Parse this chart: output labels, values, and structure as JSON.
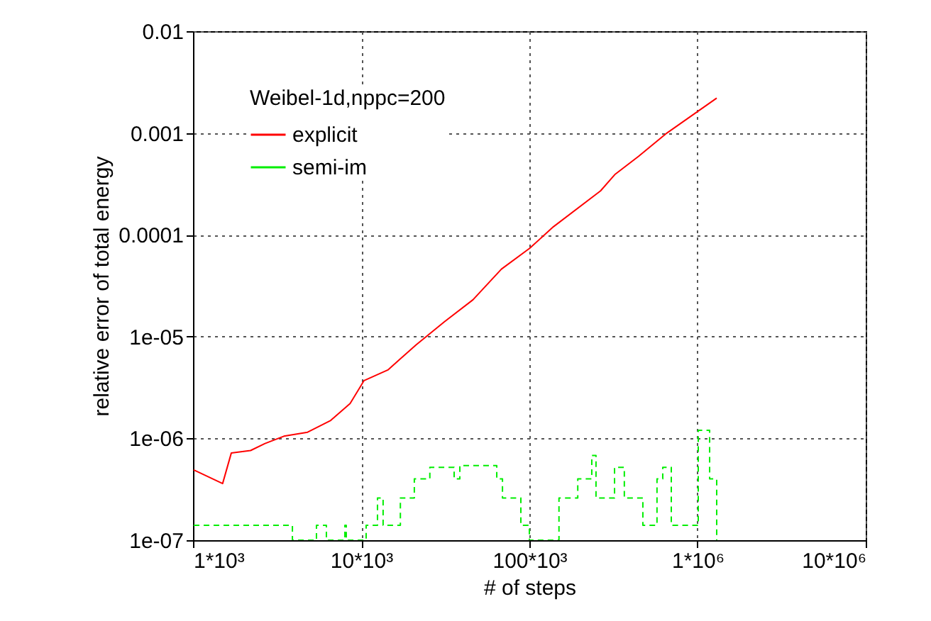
{
  "chart_data": {
    "type": "line",
    "xlabel": "# of steps",
    "ylabel": "relative error of total energy",
    "legend_title": "Weibel-1d,nppc=200",
    "log": "xy",
    "grid": true,
    "legend": "top left",
    "xlim": [
      1000,
      10000000
    ],
    "xticks": [
      {
        "value": 1000,
        "label": "1*10³"
      },
      {
        "value": 10000,
        "label": "10*10³"
      },
      {
        "value": 100000,
        "label": "100*10³"
      },
      {
        "value": 1000000,
        "label": "1*10⁶"
      },
      {
        "value": 10000000,
        "label": "10*10⁶"
      }
    ],
    "ylim": [
      1e-07,
      0.01
    ],
    "yticks": [
      {
        "value": 1e-07,
        "label": "1e-07"
      },
      {
        "value": 1e-06,
        "label": "1e-06"
      },
      {
        "value": 1e-05,
        "label": "1e-05"
      },
      0.0001,
      0.001,
      0.01
    ],
    "series": [
      {
        "name": "explicit",
        "line_style": "solid",
        "color": "#ff0000",
        "x": [
          1010,
          1500,
          1690,
          2200,
          2680,
          3470,
          4800,
          6590,
          8590,
          10400,
          14400,
          21200,
          31300,
          46200,
          68200,
          100700,
          139000,
          265000,
          322000,
          446000,
          658000,
          1300000
        ],
        "values": [
          4.9e-07,
          3.6e-07,
          7.2e-07,
          7.6e-07,
          8.9e-07,
          1.05e-06,
          1.15e-06,
          1.5e-06,
          2.2e-06,
          3.7e-06,
          4.7e-06,
          8.3e-06,
          1.4e-05,
          2.3e-05,
          4.6e-05,
          7.4e-05,
          0.00012,
          0.00027,
          0.00039,
          0.00059,
          0.001,
          0.0022
        ]
      },
      {
        "name": "semi-im",
        "type": "step",
        "line_style": "dashed",
        "color": "#00ee00",
        "x": [
          1010,
          3820,
          3900,
          5420,
          6210,
          8000,
          8150,
          10700,
          12500,
          13500,
          17100,
          20700,
          25600,
          35700,
          38600,
          52700,
          64000,
          69200,
          89000,
          100000,
          150000,
          194000,
          235000,
          249000,
          321000,
          367000,
          473000,
          574000,
          621000,
          698000,
          916000,
          1010000,
          1180000,
          1300000
        ],
        "values": [
          1.4e-07,
          1.4e-07,
          1e-07,
          1.4e-07,
          1e-07,
          1.4e-07,
          1e-07,
          1.4e-07,
          2.6e-07,
          1.4e-07,
          2.6e-07,
          4e-07,
          5.2e-07,
          4e-07,
          5.4e-07,
          5.4e-07,
          4e-07,
          2.6e-07,
          1.4e-07,
          1e-07,
          2.6e-07,
          4e-07,
          6.8e-07,
          2.6e-07,
          5.2e-07,
          2.6e-07,
          1.4e-07,
          4e-07,
          5.2e-07,
          1.4e-07,
          1.4e-07,
          1.2e-06,
          4e-07,
          1e-07
        ]
      }
    ]
  }
}
